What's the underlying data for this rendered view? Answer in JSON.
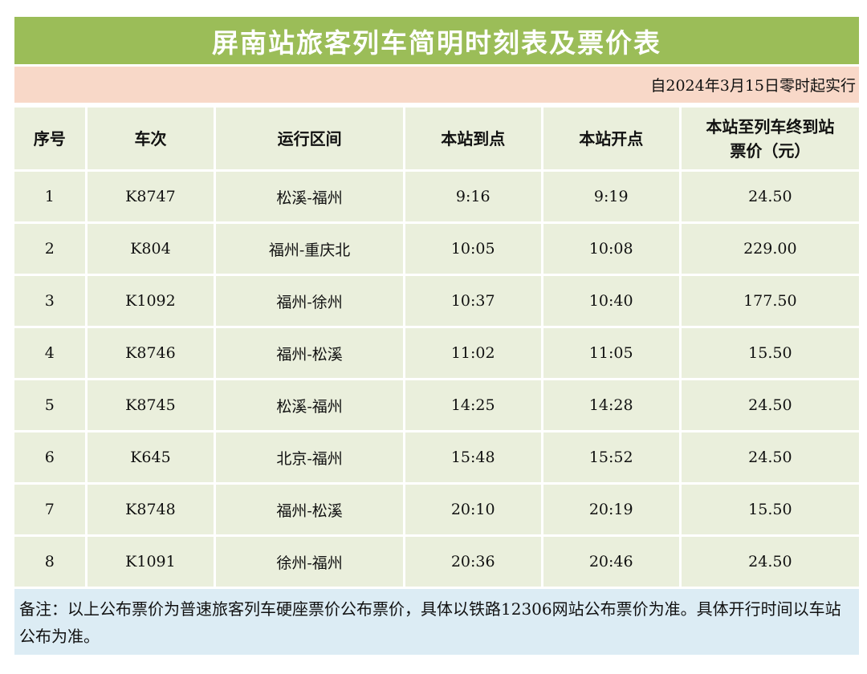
{
  "title": "屏南站旅客列车简明时刻表及票价表",
  "effective_date": "自2024年3月15日零时起实行",
  "columns": {
    "seq": "序号",
    "train": "车次",
    "route": "运行区间",
    "arrive": "本站到点",
    "depart": "本站开点",
    "price_line1": "本站至列车终到站",
    "price_line2": "票价（元）"
  },
  "rows": [
    {
      "seq": "1",
      "train": "K8747",
      "route": "松溪-福州",
      "arrive": "9:16",
      "depart": "9:19",
      "price": "24.50"
    },
    {
      "seq": "2",
      "train": "K804",
      "route": "福州-重庆北",
      "arrive": "10:05",
      "depart": "10:08",
      "price": "229.00"
    },
    {
      "seq": "3",
      "train": "K1092",
      "route": "福州-徐州",
      "arrive": "10:37",
      "depart": "10:40",
      "price": "177.50"
    },
    {
      "seq": "4",
      "train": "K8746",
      "route": "福州-松溪",
      "arrive": "11:02",
      "depart": "11:05",
      "price": "15.50"
    },
    {
      "seq": "5",
      "train": "K8745",
      "route": "松溪-福州",
      "arrive": "14:25",
      "depart": "14:28",
      "price": "24.50"
    },
    {
      "seq": "6",
      "train": "K645",
      "route": "北京-福州",
      "arrive": "15:48",
      "depart": "15:52",
      "price": "24.50"
    },
    {
      "seq": "7",
      "train": "K8748",
      "route": "福州-松溪",
      "arrive": "20:10",
      "depart": "20:19",
      "price": "15.50"
    },
    {
      "seq": "8",
      "train": "K1091",
      "route": "徐州-福州",
      "arrive": "20:36",
      "depart": "20:46",
      "price": "24.50"
    }
  ],
  "note": "备注：以上公布票价为普速旅客列车硬座票价公布票价，具体以铁路12306网站公布票价为准。具体开行时间以车站公布为准。",
  "colors": {
    "title_bg": "#9bbd58",
    "effective_bg": "#f8d8c8",
    "cell_bg": "#eaefdc",
    "note_bg": "#dcecf4"
  }
}
